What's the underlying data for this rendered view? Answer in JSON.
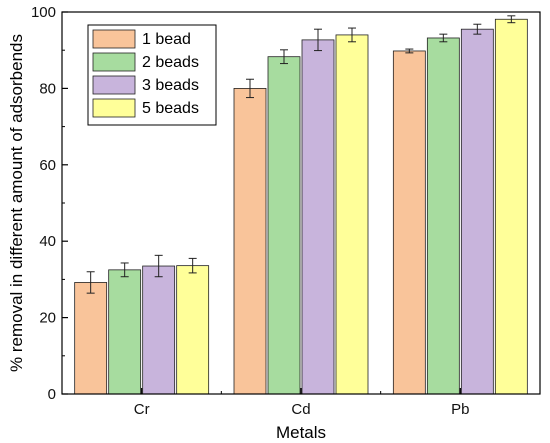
{
  "chart_data": {
    "type": "bar",
    "xlabel": "Metals",
    "ylabel": "% removal in different amount of adsorbends",
    "categories": [
      "Cr",
      "Cd",
      "Pb"
    ],
    "ylim": [
      0,
      100
    ],
    "yticks": [
      0,
      20,
      40,
      60,
      80,
      100
    ],
    "grid": false,
    "legend_position": "top-left",
    "series": [
      {
        "name": "1 bead",
        "color": "#f9c49a",
        "values": [
          29.2,
          80.0,
          89.8
        ],
        "errors": [
          2.8,
          2.4,
          0.5
        ]
      },
      {
        "name": "2 beads",
        "color": "#a7dc9f",
        "values": [
          32.5,
          88.3,
          93.2
        ],
        "errors": [
          1.8,
          1.8,
          1.0
        ]
      },
      {
        "name": "3 beads",
        "color": "#c8b4dc",
        "values": [
          33.5,
          92.7,
          95.5
        ],
        "errors": [
          2.8,
          2.8,
          1.3
        ]
      },
      {
        "name": "5 beads",
        "color": "#ffff99",
        "values": [
          33.6,
          94.0,
          98.1
        ],
        "errors": [
          1.9,
          1.8,
          0.9
        ]
      }
    ]
  }
}
